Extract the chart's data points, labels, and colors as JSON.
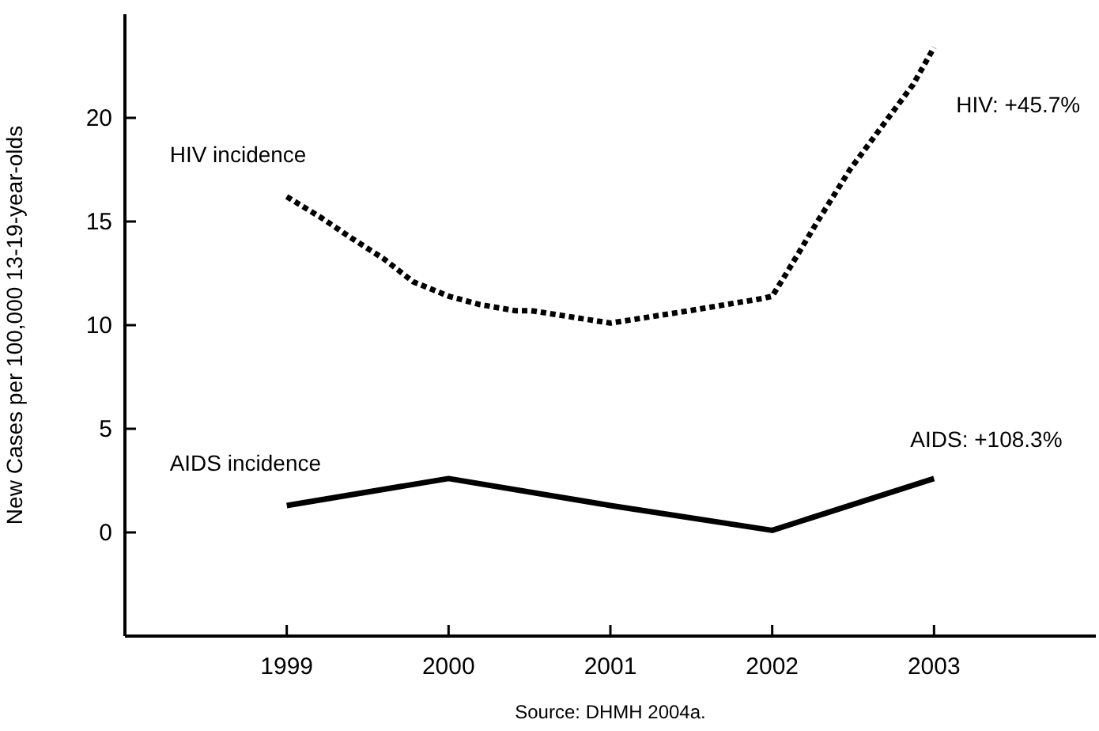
{
  "chart_data": {
    "type": "line",
    "ylabel": "New Cases per 100,000 13-19-year-olds",
    "xlim": [
      1998,
      2004
    ],
    "xticks": [
      1999,
      2000,
      2001,
      2002,
      2003
    ],
    "ylim": [
      -5,
      25
    ],
    "yticks": [
      0,
      5,
      10,
      15,
      20
    ],
    "marker": "none",
    "series": [
      {
        "name": "HIV incidence",
        "color": "#000000",
        "line_style": "dotted",
        "x": [
          1999,
          1999.21,
          1999.4,
          1999.6,
          1999.78,
          2000,
          2000.19,
          2000.41,
          2000.51,
          2001,
          2001.49,
          2001.95,
          2002,
          2002.08,
          2002.28,
          2002.48,
          2002.67,
          2002.87,
          2003
        ],
        "values": [
          16.2,
          15.2,
          14.2,
          13.2,
          12.1,
          11.4,
          11.0,
          10.7,
          10.7,
          10.1,
          10.7,
          11.3,
          11.4,
          12.4,
          15.0,
          17.5,
          19.5,
          21.6,
          23.4
        ]
      },
      {
        "name": "AIDS incidence",
        "color": "#000000",
        "line_style": "solid",
        "x": [
          1999,
          2000,
          2001,
          2002,
          2003
        ],
        "values": [
          1.3,
          2.6,
          1.3,
          0.1,
          2.6
        ]
      }
    ],
    "annotations": [
      {
        "text": "HIV: +45.7%",
        "x": 2003,
        "y": 23.4
      },
      {
        "text": "AIDS: +108.3%",
        "x": 2003,
        "y": 2.6
      },
      "Source: DHMH 2004a."
    ]
  }
}
